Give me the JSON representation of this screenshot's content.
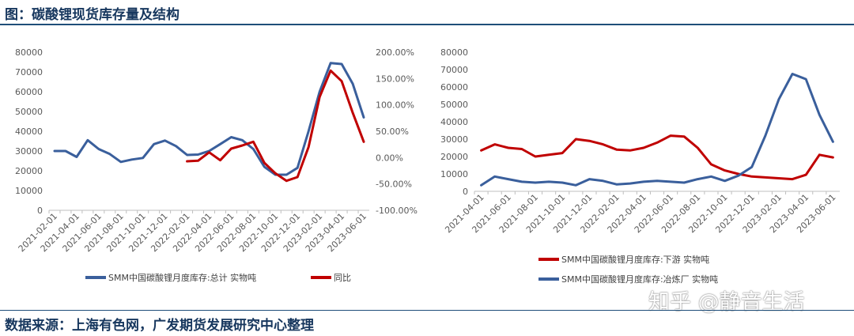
{
  "page": {
    "title": "图：碳酸锂现货库存量及结构",
    "source": "数据来源：上海有色网，广发期货发展研究中心整理",
    "watermark": "知乎 @静音生活"
  },
  "colors": {
    "blue": "#3a5f9c",
    "red": "#c00000",
    "title": "#17375e"
  },
  "chart_data": [
    {
      "type": "line",
      "x": [
        "2021-02-01",
        "2021-03-01",
        "2021-04-01",
        "2021-05-01",
        "2021-06-01",
        "2021-07-01",
        "2021-08-01",
        "2021-09-01",
        "2021-10-01",
        "2021-11-01",
        "2021-12-01",
        "2022-01-01",
        "2022-02-01",
        "2022-03-01",
        "2022-04-01",
        "2022-05-01",
        "2022-06-01",
        "2022-07-01",
        "2022-08-01",
        "2022-09-01",
        "2022-10-01",
        "2022-11-01",
        "2022-12-01",
        "2023-01-01",
        "2023-02-01",
        "2023-03-01",
        "2023-04-01",
        "2023-05-01",
        "2023-06-01"
      ],
      "x_tick_labels": [
        "2021-02-01",
        "2021-04-01",
        "2021-06-01",
        "2021-08-01",
        "2021-10-01",
        "2021-12-01",
        "2022-02-01",
        "2022-04-01",
        "2022-06-01",
        "2022-08-01",
        "2022-10-01",
        "2022-12-01",
        "2023-02-01",
        "2023-04-01",
        "2023-06-01"
      ],
      "y_ticks": [
        "0",
        "10000",
        "20000",
        "30000",
        "40000",
        "50000",
        "60000",
        "70000",
        "80000"
      ],
      "y2_ticks": [
        "-100.00%",
        "-50.00%",
        "0.00%",
        "50.00%",
        "100.00%",
        "150.00%",
        "200.00%"
      ],
      "ylim": [
        0,
        80000
      ],
      "y2lim": [
        -100,
        200
      ],
      "legend_position": "bottom",
      "series": [
        {
          "name": "SMM中国碳酸锂月度库存:总计 实物吨",
          "axis": "left",
          "color": "#3a5f9c",
          "values": [
            30000,
            30000,
            27000,
            35500,
            31000,
            28500,
            24500,
            25700,
            26500,
            33500,
            35300,
            32500,
            28000,
            28200,
            30000,
            33500,
            37000,
            35500,
            31000,
            22000,
            18000,
            18000,
            21500,
            40000,
            60000,
            74500,
            74000,
            64000,
            47000
          ]
        },
        {
          "name": "同比",
          "axis": "right",
          "color": "#c00000",
          "values": [
            null,
            null,
            null,
            null,
            null,
            null,
            null,
            null,
            null,
            null,
            null,
            null,
            -7,
            -6,
            10,
            -5,
            17,
            23,
            30,
            -10,
            -30,
            -44,
            -37,
            20,
            115,
            165,
            145,
            85,
            30
          ]
        }
      ]
    },
    {
      "type": "line",
      "x": [
        "2021-04-01",
        "2021-05-01",
        "2021-06-01",
        "2021-07-01",
        "2021-08-01",
        "2021-09-01",
        "2021-10-01",
        "2021-11-01",
        "2021-12-01",
        "2022-01-01",
        "2022-02-01",
        "2022-03-01",
        "2022-04-01",
        "2022-05-01",
        "2022-06-01",
        "2022-07-01",
        "2022-08-01",
        "2022-09-01",
        "2022-10-01",
        "2022-11-01",
        "2022-12-01",
        "2023-01-01",
        "2023-02-01",
        "2023-03-01",
        "2023-04-01",
        "2023-05-01",
        "2023-06-01"
      ],
      "x_tick_labels": [
        "2021-04-01",
        "2021-06-01",
        "2021-08-01",
        "2021-10-01",
        "2021-12-01",
        "2022-02-01",
        "2022-04-01",
        "2022-06-01",
        "2022-08-01",
        "2022-10-01",
        "2022-12-01",
        "2023-02-01",
        "2023-04-01",
        "2023-06-01"
      ],
      "y_ticks": [
        "0",
        "10000",
        "20000",
        "30000",
        "40000",
        "50000",
        "60000",
        "70000",
        "80000"
      ],
      "ylim": [
        0,
        80000
      ],
      "legend_position": "bottom",
      "series": [
        {
          "name": "SMM中国碳酸锂月度库存:下游 实物吨",
          "color": "#c00000",
          "values": [
            23500,
            27000,
            25000,
            24300,
            20000,
            21000,
            22000,
            30000,
            29000,
            27000,
            24000,
            23500,
            25000,
            28000,
            32000,
            31500,
            25000,
            15500,
            12000,
            10000,
            8500,
            8000,
            7500,
            7000,
            9500,
            21000,
            19500
          ]
        },
        {
          "name": "SMM中国碳酸锂月度库存:冶炼厂 实物吨",
          "color": "#3a5f9c",
          "values": [
            3500,
            8500,
            7000,
            5500,
            5000,
            5500,
            5000,
            3500,
            7000,
            6000,
            4000,
            4500,
            5500,
            6000,
            5500,
            5000,
            7000,
            8500,
            6000,
            9000,
            14000,
            32000,
            53000,
            67500,
            64500,
            44000,
            28500
          ]
        }
      ]
    }
  ]
}
